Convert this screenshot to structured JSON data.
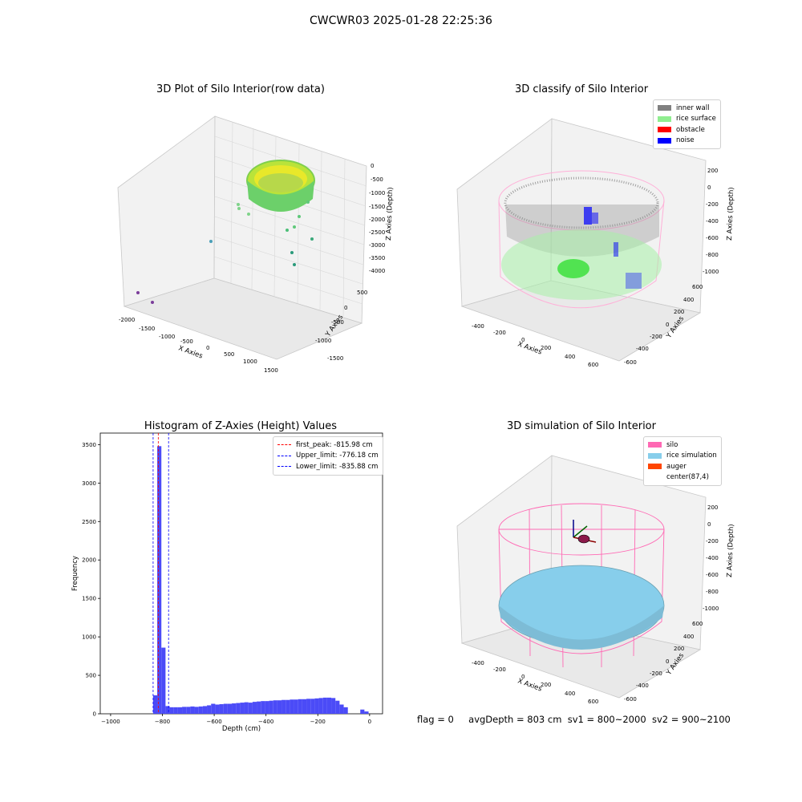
{
  "figure_title": "CWCWR03 2025-01-28 22:25:36",
  "footer": {
    "flag": "flag = 0",
    "avg": "avgDepth = 803 cm",
    "sv1": "sv1 = 800~2000",
    "sv2": "sv2 = 900~2100"
  },
  "colors": {
    "inner_wall": "#808080",
    "rice_surface": "#90ee90",
    "obstacle": "#ff0000",
    "noise": "#0000ff",
    "silo": "#ff69b4",
    "rice_simulation": "#87ceeb",
    "auger": "#ff4500",
    "hist_bar": "#4b4bf7",
    "first_peak": "#ff0000",
    "limits": "#0000ff"
  },
  "chart_data": [
    {
      "type": "scatter",
      "title": "3D Plot of Silo Interior(row data)",
      "xlabel": "X Axies",
      "ylabel": "Y Axies",
      "zlabel": "Z Axies (Depth)",
      "x_ticks": [
        "-2000",
        "-1500",
        "-1000",
        "-500",
        "0",
        "500",
        "1000",
        "1500"
      ],
      "y_ticks": [
        "-1500",
        "-1000",
        "-500",
        "0",
        "500"
      ],
      "z_ticks": [
        "0",
        "-500",
        "-1000",
        "-1500",
        "-2000",
        "-2500",
        "-3000",
        "-3500",
        "-4000"
      ]
    },
    {
      "type": "scatter",
      "title": "3D classify of Silo Interior",
      "xlabel": "X Axies",
      "ylabel": "Y Axies",
      "zlabel": "Z Axies (Depth)",
      "x_ticks": [
        "-400",
        "-200",
        "0",
        "200",
        "400",
        "600"
      ],
      "y_ticks": [
        "-600",
        "-400",
        "-200",
        "0",
        "200",
        "400",
        "600"
      ],
      "z_ticks": [
        "200",
        "0",
        "-200",
        "-400",
        "-600",
        "-800",
        "-1000"
      ],
      "legend": [
        "inner wall",
        "rice surface",
        "obstacle",
        "noise"
      ]
    },
    {
      "type": "bar",
      "title": "Histogram of Z-Axies (Height) Values",
      "xlabel": "Depth (cm)",
      "ylabel": "Frequency",
      "xlim": [
        -1040,
        50
      ],
      "ylim": [
        0,
        3650
      ],
      "x_ticks": [
        -1000,
        -800,
        -600,
        -400,
        -200,
        0
      ],
      "y_ticks": [
        0,
        500,
        1000,
        1500,
        2000,
        2500,
        3000,
        3500
      ],
      "bin_width": 16,
      "bins": [
        {
          "x": -836,
          "value": 240
        },
        {
          "x": -820,
          "value": 3480
        },
        {
          "x": -804,
          "value": 860
        },
        {
          "x": -788,
          "value": 100
        },
        {
          "x": -772,
          "value": 85
        },
        {
          "x": -756,
          "value": 85
        },
        {
          "x": -740,
          "value": 85
        },
        {
          "x": -724,
          "value": 90
        },
        {
          "x": -708,
          "value": 90
        },
        {
          "x": -692,
          "value": 95
        },
        {
          "x": -676,
          "value": 90
        },
        {
          "x": -660,
          "value": 95
        },
        {
          "x": -644,
          "value": 100
        },
        {
          "x": -628,
          "value": 110
        },
        {
          "x": -612,
          "value": 130
        },
        {
          "x": -596,
          "value": 120
        },
        {
          "x": -580,
          "value": 125
        },
        {
          "x": -564,
          "value": 130
        },
        {
          "x": -548,
          "value": 130
        },
        {
          "x": -532,
          "value": 135
        },
        {
          "x": -516,
          "value": 140
        },
        {
          "x": -500,
          "value": 145
        },
        {
          "x": -484,
          "value": 150
        },
        {
          "x": -468,
          "value": 145
        },
        {
          "x": -452,
          "value": 155
        },
        {
          "x": -436,
          "value": 160
        },
        {
          "x": -420,
          "value": 165
        },
        {
          "x": -404,
          "value": 165
        },
        {
          "x": -388,
          "value": 170
        },
        {
          "x": -372,
          "value": 175
        },
        {
          "x": -356,
          "value": 175
        },
        {
          "x": -340,
          "value": 180
        },
        {
          "x": -324,
          "value": 180
        },
        {
          "x": -308,
          "value": 185
        },
        {
          "x": -292,
          "value": 185
        },
        {
          "x": -276,
          "value": 190
        },
        {
          "x": -260,
          "value": 190
        },
        {
          "x": -244,
          "value": 195
        },
        {
          "x": -228,
          "value": 195
        },
        {
          "x": -212,
          "value": 200
        },
        {
          "x": -196,
          "value": 205
        },
        {
          "x": -180,
          "value": 210
        },
        {
          "x": -164,
          "value": 210
        },
        {
          "x": -148,
          "value": 205
        },
        {
          "x": -132,
          "value": 170
        },
        {
          "x": -116,
          "value": 120
        },
        {
          "x": -100,
          "value": 85
        },
        {
          "x": -84,
          "value": 0
        },
        {
          "x": -68,
          "value": 0
        },
        {
          "x": -52,
          "value": 0
        },
        {
          "x": -36,
          "value": 55
        },
        {
          "x": -20,
          "value": 30
        }
      ],
      "legend": [
        {
          "label": "first_peak: -815.98 cm",
          "value": -815.98
        },
        {
          "label": "Upper_limit: -776.18 cm",
          "value": -776.18
        },
        {
          "label": "Lower_limit: -835.88 cm",
          "value": -835.88
        }
      ]
    },
    {
      "type": "scatter",
      "title": "3D simulation of Silo Interior",
      "xlabel": "X Axies",
      "ylabel": "Y Axies",
      "zlabel": "Z Axies (Depth)",
      "x_ticks": [
        "-400",
        "-200",
        "0",
        "200",
        "400",
        "600"
      ],
      "y_ticks": [
        "-600",
        "-400",
        "-200",
        "0",
        "200",
        "400",
        "600"
      ],
      "z_ticks": [
        "200",
        "0",
        "-200",
        "-400",
        "-600",
        "-800",
        "-1000"
      ],
      "legend": [
        "silo",
        "rice simulation",
        "auger",
        "center(87,4)"
      ]
    }
  ]
}
